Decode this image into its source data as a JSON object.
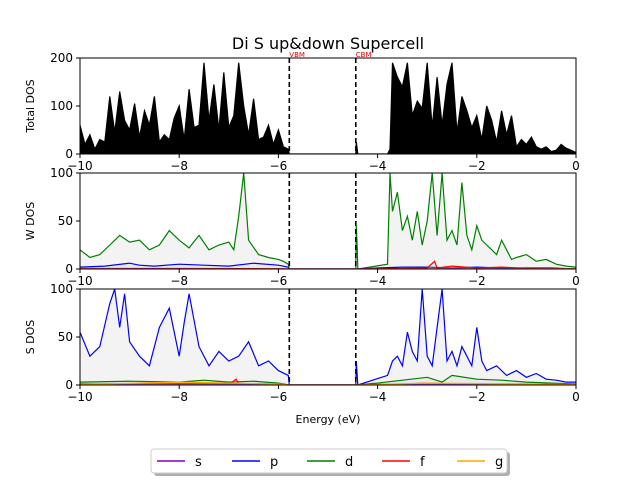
{
  "figure": {
    "title": "Di S up&down Supercell",
    "xlabel": "Energy (eV)",
    "vbm_label": "VBM",
    "cbm_label": "CBM",
    "vbm_energy": -5.78,
    "cbm_energy": -4.44
  },
  "legend": {
    "placement": "bottom-center",
    "items": [
      {
        "name": "s",
        "color": "#8000c0"
      },
      {
        "name": "p",
        "color": "#0000ff"
      },
      {
        "name": "d",
        "color": "#008000"
      },
      {
        "name": "f",
        "color": "#ff0000"
      },
      {
        "name": "g",
        "color": "#ffa500"
      }
    ]
  },
  "chart_data": [
    {
      "type": "line",
      "panel": "total",
      "ylabel": "Total DOS",
      "xlim": [
        -10,
        0
      ],
      "ylim": [
        0,
        200
      ],
      "xticks": [
        -10,
        -8,
        -6,
        -4,
        -2,
        0
      ],
      "yticks": [
        0,
        100,
        200
      ],
      "series": [
        {
          "name": "",
          "color": "#000000",
          "x": [
            -10.0,
            -9.9,
            -9.8,
            -9.7,
            -9.6,
            -9.5,
            -9.4,
            -9.3,
            -9.2,
            -9.1,
            -9.0,
            -8.9,
            -8.8,
            -8.7,
            -8.6,
            -8.5,
            -8.4,
            -8.3,
            -8.2,
            -8.1,
            -8.0,
            -7.9,
            -7.8,
            -7.7,
            -7.6,
            -7.5,
            -7.4,
            -7.3,
            -7.2,
            -7.1,
            -7.0,
            -6.9,
            -6.8,
            -6.7,
            -6.6,
            -6.5,
            -6.4,
            -6.3,
            -6.2,
            -6.1,
            -6.0,
            -5.9,
            -5.8,
            -5.78,
            -4.44,
            -4.43,
            -4.4,
            -4.38,
            -3.8,
            -3.75,
            -3.7,
            -3.6,
            -3.5,
            -3.4,
            -3.3,
            -3.2,
            -3.1,
            -3.0,
            -2.9,
            -2.8,
            -2.7,
            -2.6,
            -2.5,
            -2.4,
            -2.3,
            -2.2,
            -2.1,
            -2.0,
            -1.9,
            -1.8,
            -1.7,
            -1.6,
            -1.5,
            -1.4,
            -1.3,
            -1.2,
            -1.1,
            -1.0,
            -0.9,
            -0.8,
            -0.7,
            -0.6,
            -0.5,
            -0.4,
            -0.3,
            -0.2,
            -0.1,
            0.0
          ],
          "y": [
            60,
            20,
            40,
            10,
            30,
            25,
            120,
            45,
            130,
            70,
            50,
            105,
            35,
            90,
            60,
            120,
            25,
            40,
            30,
            75,
            100,
            30,
            135,
            55,
            60,
            190,
            70,
            145,
            50,
            170,
            55,
            80,
            190,
            100,
            40,
            115,
            30,
            35,
            60,
            20,
            50,
            15,
            10,
            0,
            0,
            25,
            0,
            0,
            0,
            10,
            190,
            160,
            140,
            190,
            80,
            110,
            95,
            190,
            55,
            160,
            60,
            145,
            190,
            45,
            120,
            90,
            55,
            80,
            30,
            100,
            70,
            25,
            90,
            40,
            80,
            15,
            30,
            20,
            35,
            15,
            10,
            15,
            5,
            8,
            20,
            12,
            8,
            3
          ]
        }
      ]
    },
    {
      "type": "area",
      "panel": "W",
      "ylabel": "W DOS",
      "xlim": [
        -10,
        0
      ],
      "ylim": [
        0,
        100
      ],
      "xticks": [
        -10,
        -8,
        -6,
        -4,
        -2,
        0
      ],
      "yticks": [
        0,
        50,
        100
      ],
      "series": [
        {
          "name": "d",
          "color": "#008000",
          "x": [
            -10.0,
            -9.8,
            -9.6,
            -9.4,
            -9.2,
            -9.0,
            -8.8,
            -8.6,
            -8.4,
            -8.2,
            -8.0,
            -7.8,
            -7.6,
            -7.4,
            -7.2,
            -7.0,
            -6.9,
            -6.8,
            -6.7,
            -6.6,
            -6.4,
            -6.2,
            -6.0,
            -5.9,
            -5.8,
            -5.78,
            -4.44,
            -4.43,
            -4.41,
            -4.4,
            -3.8,
            -3.75,
            -3.7,
            -3.6,
            -3.5,
            -3.4,
            -3.3,
            -3.2,
            -3.1,
            -3.0,
            -2.9,
            -2.8,
            -2.7,
            -2.6,
            -2.5,
            -2.4,
            -2.3,
            -2.2,
            -2.1,
            -2.0,
            -1.9,
            -1.8,
            -1.7,
            -1.6,
            -1.5,
            -1.4,
            -1.3,
            -1.2,
            -1.0,
            -0.8,
            -0.6,
            -0.4,
            -0.2,
            0.0
          ],
          "y": [
            20,
            12,
            15,
            25,
            35,
            28,
            30,
            20,
            25,
            40,
            30,
            22,
            35,
            20,
            25,
            28,
            20,
            55,
            100,
            30,
            15,
            12,
            10,
            8,
            5,
            0,
            0,
            45,
            20,
            0,
            5,
            100,
            60,
            80,
            40,
            55,
            30,
            60,
            25,
            50,
            100,
            35,
            100,
            30,
            40,
            25,
            90,
            35,
            20,
            45,
            30,
            25,
            20,
            15,
            30,
            20,
            10,
            12,
            15,
            8,
            10,
            5,
            3,
            2
          ]
        },
        {
          "name": "p",
          "color": "#0000ff",
          "x": [
            -10.0,
            -9.5,
            -9.0,
            -8.8,
            -8.5,
            -8.0,
            -7.5,
            -7.0,
            -6.5,
            -6.0,
            -5.8,
            -5.78,
            -4.44,
            -4.0,
            -3.5,
            -3.0,
            -2.5,
            -2.0,
            -1.5,
            -1.0,
            -0.5,
            0.0
          ],
          "y": [
            2,
            3,
            6,
            4,
            3,
            5,
            4,
            3,
            6,
            4,
            2,
            0,
            0,
            1,
            2,
            2,
            1,
            2,
            1,
            1,
            1,
            0
          ]
        },
        {
          "name": "f",
          "color": "#ff0000",
          "x": [
            -10.0,
            -8.0,
            -6.0,
            -5.78,
            -4.44,
            -3.5,
            -3.0,
            -2.85,
            -2.8,
            -2.5,
            -2.0,
            -1.5,
            -1.0,
            -0.5,
            0.0
          ],
          "y": [
            0.5,
            0.5,
            0.3,
            0,
            0,
            0.5,
            1,
            8,
            1,
            3,
            1,
            2,
            0.5,
            0.5,
            0
          ]
        },
        {
          "name": "s",
          "color": "#8000c0",
          "x": [
            -10.0,
            -5.78,
            -4.44,
            0.0
          ],
          "y": [
            0.3,
            0,
            0,
            0.3
          ]
        },
        {
          "name": "g",
          "color": "#ffa500",
          "x": [
            -10.0,
            -5.78,
            -4.44,
            0.0
          ],
          "y": [
            0.1,
            0,
            0,
            0.1
          ]
        }
      ]
    },
    {
      "type": "area",
      "panel": "S",
      "ylabel": "S DOS",
      "xlim": [
        -10,
        0
      ],
      "ylim": [
        0,
        100
      ],
      "xticks": [
        -10,
        -8,
        -6,
        -4,
        -2,
        0
      ],
      "yticks": [
        0,
        50,
        100
      ],
      "series": [
        {
          "name": "p",
          "color": "#0000ff",
          "x": [
            -10.0,
            -9.8,
            -9.6,
            -9.4,
            -9.3,
            -9.2,
            -9.1,
            -9.0,
            -8.8,
            -8.6,
            -8.4,
            -8.2,
            -8.0,
            -7.9,
            -7.8,
            -7.6,
            -7.4,
            -7.2,
            -7.0,
            -6.8,
            -6.6,
            -6.4,
            -6.2,
            -6.0,
            -5.8,
            -5.78,
            -4.44,
            -4.43,
            -4.4,
            -3.8,
            -3.7,
            -3.6,
            -3.5,
            -3.4,
            -3.3,
            -3.2,
            -3.1,
            -3.0,
            -2.9,
            -2.8,
            -2.7,
            -2.6,
            -2.5,
            -2.4,
            -2.3,
            -2.2,
            -2.1,
            -2.0,
            -1.9,
            -1.8,
            -1.6,
            -1.4,
            -1.2,
            -1.0,
            -0.8,
            -0.6,
            -0.4,
            -0.2,
            0.0
          ],
          "y": [
            55,
            30,
            40,
            85,
            100,
            60,
            95,
            45,
            30,
            20,
            60,
            80,
            30,
            65,
            95,
            40,
            20,
            35,
            25,
            30,
            45,
            20,
            25,
            15,
            10,
            0,
            0,
            25,
            0,
            10,
            25,
            30,
            20,
            55,
            35,
            25,
            100,
            30,
            20,
            60,
            100,
            25,
            35,
            20,
            40,
            30,
            20,
            60,
            25,
            15,
            20,
            10,
            15,
            8,
            12,
            6,
            5,
            3,
            3
          ]
        },
        {
          "name": "d",
          "color": "#008000",
          "x": [
            -10.0,
            -9.0,
            -8.0,
            -7.5,
            -7.0,
            -6.5,
            -6.0,
            -5.78,
            -4.44,
            -4.0,
            -3.5,
            -3.0,
            -2.7,
            -2.5,
            -2.0,
            -1.5,
            -1.0,
            -0.5,
            0.0
          ],
          "y": [
            3,
            4,
            3,
            5,
            3,
            4,
            2,
            0,
            0,
            2,
            5,
            8,
            3,
            10,
            6,
            5,
            3,
            2,
            1
          ]
        },
        {
          "name": "f",
          "color": "#ff0000",
          "x": [
            -10.0,
            -7.0,
            -6.85,
            -6.8,
            -6.0,
            -5.78,
            -4.44,
            -3.5,
            -3.0,
            -2.5,
            -2.0,
            -1.0,
            0.0
          ],
          "y": [
            0.5,
            0.5,
            6,
            1,
            0.5,
            0,
            0,
            1,
            2,
            1,
            1,
            0.5,
            0
          ]
        },
        {
          "name": "s",
          "color": "#8000c0",
          "x": [
            -10.0,
            -8.0,
            -6.0,
            -5.78,
            -4.44,
            -3.0,
            -1.0,
            0.0
          ],
          "y": [
            1,
            1.5,
            1,
            0,
            0,
            1,
            1,
            0.5
          ]
        },
        {
          "name": "g",
          "color": "#ffa500",
          "x": [
            -10.0,
            -8.0,
            -6.0,
            -5.78,
            -4.44,
            -3.0,
            -1.0,
            0.0
          ],
          "y": [
            0.5,
            3,
            1,
            0,
            0,
            2,
            1,
            0.5
          ]
        }
      ]
    }
  ]
}
